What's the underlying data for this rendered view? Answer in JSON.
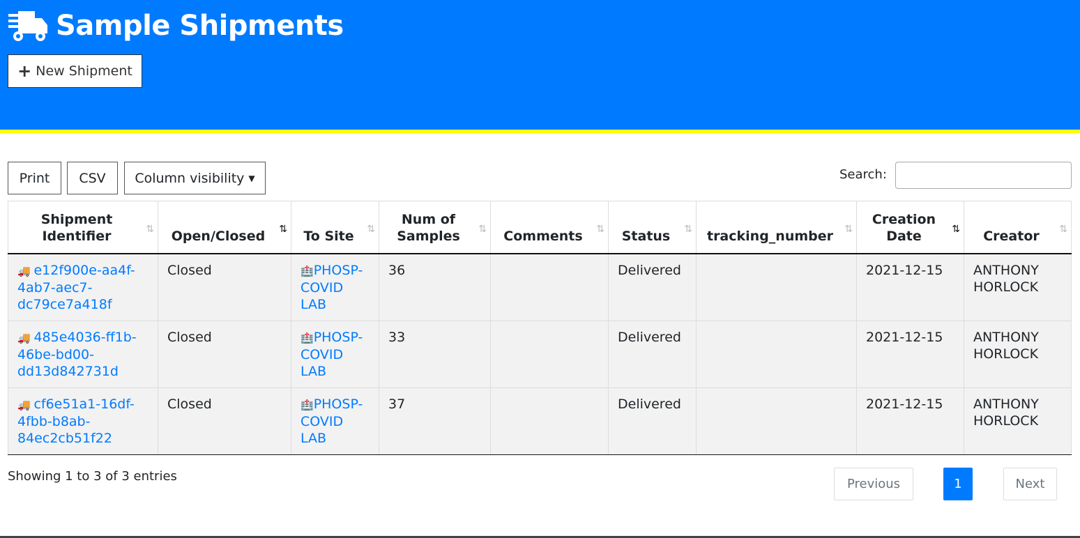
{
  "header": {
    "title": "Sample Shipments",
    "new_button": "New Shipment"
  },
  "toolbar": {
    "print": "Print",
    "csv": "CSV",
    "column_visibility": "Column visibility",
    "search_label": "Search:",
    "search_value": ""
  },
  "table": {
    "columns": [
      "Shipment Identifier",
      "Open/Closed",
      "To Site",
      "Num of Samples",
      "Comments",
      "Status",
      "tracking_number",
      "Creation Date",
      "Creator"
    ],
    "sorted": {
      "Open/Closed": "desc",
      "Creation Date": "desc"
    },
    "rows": [
      {
        "id": "e12f900e-aa4f-4ab7-aec7-dc79ce7a418f",
        "open": "Closed",
        "site": "PHOSP-COVID LAB",
        "num": "36",
        "comments": "",
        "status": "Delivered",
        "tracking": "",
        "date": "2021-12-15",
        "creator": "ANTHONY HORLOCK"
      },
      {
        "id": "485e4036-ff1b-46be-bd00-dd13d842731d",
        "open": "Closed",
        "site": "PHOSP-COVID LAB",
        "num": "33",
        "comments": "",
        "status": "Delivered",
        "tracking": "",
        "date": "2021-12-15",
        "creator": "ANTHONY HORLOCK"
      },
      {
        "id": "cf6e51a1-16df-4fbb-b8ab-84ec2cb51f22",
        "open": "Closed",
        "site": "PHOSP-COVID LAB",
        "num": "37",
        "comments": "",
        "status": "Delivered",
        "tracking": "",
        "date": "2021-12-15",
        "creator": "ANTHONY HORLOCK"
      }
    ]
  },
  "footer": {
    "info": "Showing 1 to 3 of 3 entries",
    "previous": "Previous",
    "page": "1",
    "next": "Next"
  },
  "colors": {
    "header": "#007bff",
    "stripe": "#ffff00",
    "link": "#007bff"
  }
}
